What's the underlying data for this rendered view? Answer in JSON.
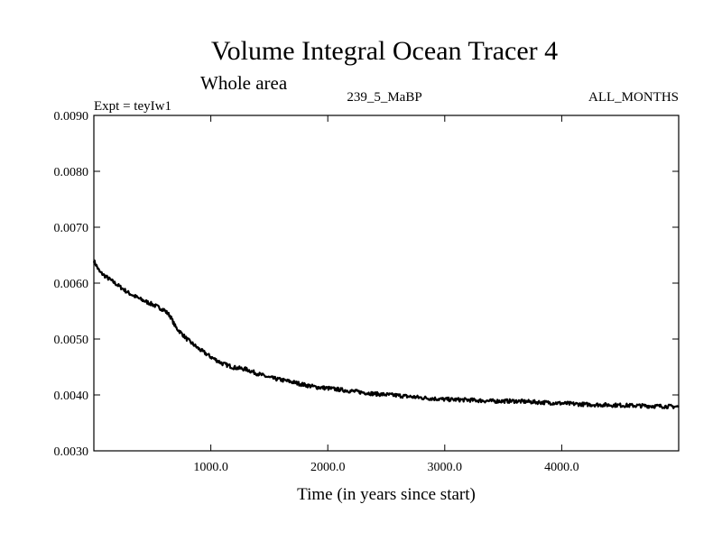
{
  "chart_data": {
    "type": "line",
    "title": "Volume Integral Ocean Tracer 4",
    "subtitle": "Whole area",
    "left_label": "Expt = teyIw1",
    "center_label": "239_5_MaBP",
    "right_label": "ALL_MONTHS",
    "xlabel": "Time (in years since start)",
    "ylabel": "",
    "xlim": [
      0,
      5000
    ],
    "ylim": [
      0.003,
      0.009
    ],
    "x_ticks": [
      1000,
      2000,
      3000,
      4000
    ],
    "x_tick_labels": [
      "1000.0",
      "2000.0",
      "3000.0",
      "4000.0"
    ],
    "y_ticks": [
      0.003,
      0.004,
      0.005,
      0.006,
      0.007,
      0.008,
      0.009
    ],
    "y_tick_labels": [
      "0.0030",
      "0.0040",
      "0.0050",
      "0.0060",
      "0.0070",
      "0.0080",
      "0.0090"
    ],
    "grid": false,
    "series": [
      {
        "x": [
          0,
          50,
          100,
          200,
          300,
          400,
          500,
          600,
          650,
          700,
          800,
          900,
          1000,
          1100,
          1200,
          1300,
          1400,
          1500,
          1600,
          1700,
          1800,
          1900,
          2000,
          2200,
          2400,
          2600,
          2800,
          3000,
          3200,
          3400,
          3600,
          3800,
          4000,
          4200,
          4400,
          4600,
          4800,
          5000
        ],
        "y": [
          0.0064,
          0.0062,
          0.00612,
          0.00597,
          0.00582,
          0.00571,
          0.00562,
          0.00552,
          0.00542,
          0.00521,
          0.00499,
          0.00482,
          0.00468,
          0.00456,
          0.00449,
          0.00446,
          0.00438,
          0.00431,
          0.00427,
          0.00423,
          0.00418,
          0.00414,
          0.00412,
          0.00407,
          0.00402,
          0.00399,
          0.00395,
          0.00392,
          0.00391,
          0.00389,
          0.00389,
          0.00387,
          0.00385,
          0.00383,
          0.00382,
          0.00381,
          0.0038,
          0.00379
        ],
        "color": "#000000"
      }
    ]
  }
}
